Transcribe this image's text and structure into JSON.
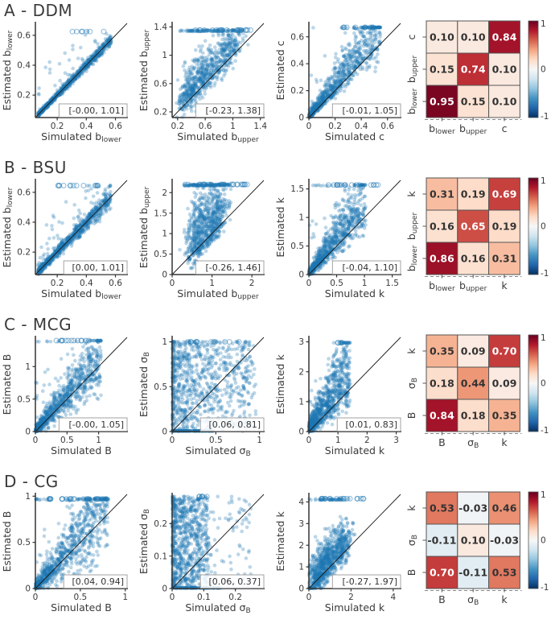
{
  "figure": {
    "background": "#ffffff",
    "point_color": "#1f77b4",
    "spine_color": "#333333",
    "text_color": "#3a3a3a",
    "colorbar": {
      "ticks": [
        "1",
        "0",
        "-1"
      ],
      "colormap": "RdBu_r",
      "stops": [
        "#67001f",
        "#b2182b",
        "#d6604d",
        "#f4a582",
        "#fddbc7",
        "#f7f7f7",
        "#d1e5f0",
        "#92c5de",
        "#4393c3",
        "#2166ac",
        "#053061"
      ]
    }
  },
  "chart_data": [
    {
      "title": "A - DDM",
      "scatters": [
        {
          "type": "scatter",
          "xlabel": "Simulated b_{lower}",
          "ylabel": "Estimated b_{lower}",
          "annotation": "[-0.00, 1.01]",
          "range": [
            0.05,
            0.68
          ],
          "xticks": [
            "0.2",
            "0.4",
            "0.6"
          ],
          "yticks": [
            "0.2",
            "0.4",
            "0.6"
          ],
          "style": "diag",
          "ceil": 0.625,
          "n": 850,
          "seed": 101,
          "open": [
            7,
            0.22,
            0.56
          ],
          "p": {
            "noise": 0.028,
            "outP": 0.04,
            "outW": 0.45
          }
        },
        {
          "type": "scatter",
          "xlabel": "Simulated b_{upper}",
          "ylabel": "Estimated b_{upper}",
          "annotation": "[-0.23, 1.38]",
          "range": [
            0.12,
            1.45
          ],
          "xticks": [
            "0.2",
            "0.6",
            "1",
            "1.4"
          ],
          "yticks": [
            "0.2",
            "0.6",
            "1",
            "1.4"
          ],
          "style": "plume",
          "ceil": 1.355,
          "n": 800,
          "seed": 102,
          "open": [
            20,
            0.38,
            1.32
          ],
          "p": {
            "x0": 0.3,
            "xw": 0.8,
            "pw": 1.35,
            "up": 0.3,
            "topFrac": 0.12,
            "belowP": 0.15
          }
        },
        {
          "type": "scatter",
          "xlabel": "Simulated c",
          "ylabel": "Estimated c",
          "annotation": "[-0.01, 1.05]",
          "range": [
            0,
            0.7
          ],
          "xticks": [
            "0",
            "0.2",
            "0.4",
            "0.6"
          ],
          "yticks": [
            "0",
            "0.2",
            "0.4",
            "0.6"
          ],
          "style": "cone",
          "ceil": 0.67,
          "n": 850,
          "seed": 103,
          "open": [
            9,
            0.18,
            0.52
          ],
          "p": {
            "xmaxF": 0.78,
            "up": 0.4,
            "dn": 0.12,
            "out": 0.03,
            "topFrac": 0.015
          }
        }
      ],
      "heatmap": {
        "type": "heatmap",
        "cols": [
          "b_{lower}",
          "b_{upper}",
          "c"
        ],
        "rows": [
          "c",
          "b_{upper}",
          "b_{lower}"
        ],
        "values": [
          [
            0.1,
            0.1,
            0.84
          ],
          [
            0.15,
            0.74,
            0.1
          ],
          [
            0.95,
            0.15,
            0.1
          ]
        ],
        "vmin": -1,
        "vmax": 1
      }
    },
    {
      "title": "B - BSU",
      "scatters": [
        {
          "type": "scatter",
          "xlabel": "Simulated b_{lower}",
          "ylabel": "Estimated b_{lower}",
          "annotation": "[0.00, 1.01]",
          "range": [
            0.05,
            0.68
          ],
          "xticks": [
            "0.2",
            "0.4",
            "0.6"
          ],
          "yticks": [
            "0.2",
            "0.4",
            "0.6"
          ],
          "style": "diag",
          "ceil": 0.645,
          "n": 850,
          "seed": 201,
          "open": [
            13,
            0.18,
            0.5
          ],
          "p": {
            "noise": 0.05,
            "outP": 0.07,
            "outW": 0.45
          }
        },
        {
          "type": "scatter",
          "xlabel": "Simulated b_{upper}",
          "ylabel": "Estimated b_{upper}",
          "annotation": "[-0.26, 1.46]",
          "range": [
            0,
            2.3
          ],
          "xticks": [
            "0",
            "1",
            "2"
          ],
          "yticks": [
            "0",
            "0.5",
            "1",
            "1.5",
            "2"
          ],
          "style": "plume",
          "ceil": 2.2,
          "n": 850,
          "seed": 202,
          "open": [
            26,
            0.3,
            1.9
          ],
          "p": {
            "x0": 0.5,
            "xw": 0.8,
            "pw": 1.2,
            "up": 0.42,
            "topFrac": 0.13,
            "belowP": 0.15
          }
        },
        {
          "type": "scatter",
          "xlabel": "Simulated k",
          "ylabel": "Estimated k",
          "annotation": "[-0.04, 1.10]",
          "range": [
            0,
            1.65
          ],
          "xticks": [
            "0",
            "0.5",
            "1",
            "1.5"
          ],
          "yticks": [
            "0",
            "0.5",
            "1",
            "1.5"
          ],
          "style": "cone",
          "ceil": 1.57,
          "n": 850,
          "seed": 203,
          "open": [
            17,
            0.35,
            1.25
          ],
          "p": {
            "xmaxF": 0.62,
            "up": 0.5,
            "dn": 0.16,
            "out": 0.04,
            "topFrac": 0.02
          }
        }
      ],
      "heatmap": {
        "type": "heatmap",
        "cols": [
          "b_{lower}",
          "b_{upper}",
          "k"
        ],
        "rows": [
          "k",
          "b_{upper}",
          "b_{lower}"
        ],
        "values": [
          [
            0.31,
            0.19,
            0.69
          ],
          [
            0.16,
            0.65,
            0.19
          ],
          [
            0.86,
            0.16,
            0.31
          ]
        ],
        "vmin": -1,
        "vmax": 1
      }
    },
    {
      "title": "C - MCG",
      "scatters": [
        {
          "type": "scatter",
          "xlabel": "Simulated B",
          "ylabel": "Estimated B",
          "annotation": "[-0.00, 1.05]",
          "range": [
            0,
            1.45
          ],
          "xticks": [
            "0",
            "0.5",
            "1"
          ],
          "yticks": [
            "0",
            "0.5",
            "1"
          ],
          "style": "cone",
          "ceil": 1.4,
          "n": 900,
          "seed": 301,
          "open": [
            13,
            0.25,
            0.95
          ],
          "p": {
            "xmaxF": 0.72,
            "up": 0.4,
            "dn": 0.24,
            "out": 0.05,
            "topFrac": 0.01
          }
        },
        {
          "type": "scatter",
          "xlabel": "Simulated σ_{B}",
          "ylabel": "Estimated σ_{B}",
          "annotation": "[0.06, 0.81]",
          "range": [
            0,
            1.05
          ],
          "xticks": [
            "0",
            "0.5",
            "1"
          ],
          "yticks": [
            "0",
            "0.5",
            "1"
          ],
          "style": "fill",
          "ceil": 1.0,
          "n": 900,
          "seed": 302,
          "open": [
            12,
            0.03,
            0.8
          ],
          "p": {
            "xw": 0.85,
            "xpow": 1.9,
            "tailP": 0.05,
            "tailW": 0.15,
            "bottomN": 120,
            "bottomW": 0.45,
            "topFrac": 0.03
          }
        },
        {
          "type": "scatter",
          "xlabel": "Simulated k",
          "ylabel": "Estimated k",
          "annotation": "[0.01, 0.83]",
          "range": [
            0,
            3.15
          ],
          "xticks": [
            "0",
            "1",
            "2",
            "3"
          ],
          "yticks": [
            "0",
            "1",
            "2",
            "3"
          ],
          "style": "cone",
          "ceil": 2.97,
          "n": 900,
          "seed": 303,
          "open": [
            5,
            0.7,
            1.35
          ],
          "p": {
            "xmaxF": 0.45,
            "up": 0.85,
            "dn": 0.25,
            "out": 0.02
          }
        }
      ],
      "heatmap": {
        "type": "heatmap",
        "cols": [
          "B",
          "σ_{B}",
          "k"
        ],
        "rows": [
          "k",
          "σ_{B}",
          "B"
        ],
        "values": [
          [
            0.35,
            0.09,
            0.7
          ],
          [
            0.18,
            0.44,
            0.09
          ],
          [
            0.84,
            0.18,
            0.35
          ]
        ],
        "vmin": -1,
        "vmax": 1
      }
    },
    {
      "title": "D - CG",
      "scatters": [
        {
          "type": "scatter",
          "xlabel": "Simulated B",
          "ylabel": "Estimated B",
          "annotation": "[0.04, 0.94]",
          "range": [
            0,
            1.02
          ],
          "xticks": [
            "0",
            "0.5",
            "1"
          ],
          "yticks": [
            "0",
            "0.5",
            "1"
          ],
          "style": "cone",
          "ceil": 0.97,
          "n": 900,
          "seed": 401,
          "open": [
            26,
            0.15,
            0.8
          ],
          "p": {
            "xmaxF": 0.8,
            "up": 0.5,
            "dn": 0.34,
            "out": 0.05,
            "topFrac": 0.04
          }
        },
        {
          "type": "scatter",
          "xlabel": "Simulated σ_{B}",
          "ylabel": "Estimated σ_{B}",
          "annotation": "[0.06, 0.37]",
          "range": [
            0,
            0.29
          ],
          "xticks": [
            "0",
            "0.1",
            "0.2"
          ],
          "yticks": [
            "0",
            "0.1",
            "0.2"
          ],
          "style": "fill",
          "ceil": 0.283,
          "n": 900,
          "seed": 402,
          "open": [
            6,
            0.02,
            0.13
          ],
          "p": {
            "xw": 0.4,
            "xpow": 1.6,
            "tailP": 0.12,
            "tailW": 0.5,
            "bottomN": 110,
            "bottomW": 0.55,
            "topFrac": 0.01
          }
        },
        {
          "type": "scatter",
          "xlabel": "Simulated k",
          "ylabel": "Estimated k",
          "annotation": "[-0.27, 1.97]",
          "range": [
            0,
            4.35
          ],
          "xticks": [
            "0",
            "2",
            "4"
          ],
          "yticks": [
            "0",
            "1",
            "2",
            "3",
            "4"
          ],
          "style": "plume",
          "ceil": 4.15,
          "n": 900,
          "seed": 403,
          "open": [
            18,
            0.45,
            2.6
          ],
          "p": {
            "x0": 0.25,
            "xw": 1.6,
            "pw": 1.3,
            "up": 0.27,
            "topFrac": 0.05,
            "belowP": 0.2
          }
        }
      ],
      "heatmap": {
        "type": "heatmap",
        "cols": [
          "B",
          "σ_{B}",
          "k"
        ],
        "rows": [
          "k",
          "σ_{B}",
          "B"
        ],
        "values": [
          [
            0.53,
            -0.03,
            0.46
          ],
          [
            -0.11,
            0.1,
            -0.03
          ],
          [
            0.7,
            -0.11,
            0.53
          ]
        ],
        "vmin": -1,
        "vmax": 1
      }
    }
  ]
}
